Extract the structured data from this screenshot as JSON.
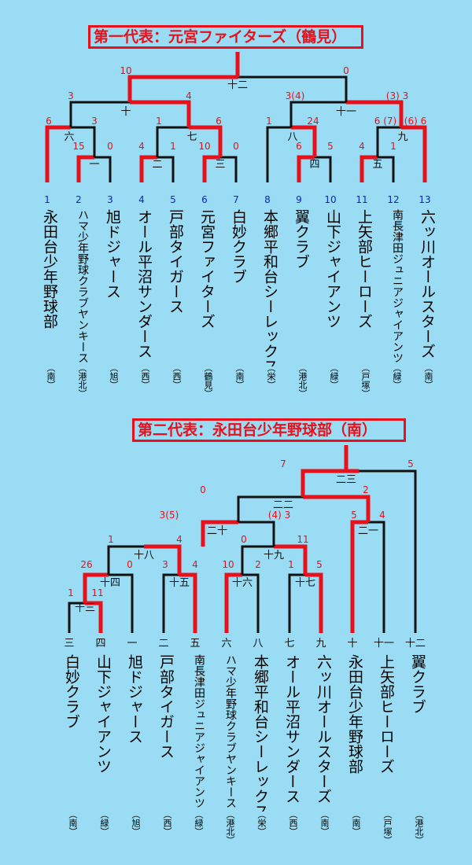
{
  "title1": "第一代表：元宮ファイターズ（鶴見）",
  "title2": "第二代表：永田台少年野球部（南）",
  "b1": {
    "teams": [
      {
        "num": "1",
        "name": "永田台少年野球部",
        "region": "（南）"
      },
      {
        "num": "2",
        "name": "ハマ少年野球クラブヤンキース",
        "region": "（港北）"
      },
      {
        "num": "3",
        "name": "旭ドジャース",
        "region": "（旭）"
      },
      {
        "num": "4",
        "name": "オール平沼サンダース",
        "region": "（西）"
      },
      {
        "num": "5",
        "name": "戸部タイガース",
        "region": "（西）"
      },
      {
        "num": "6",
        "name": "元宮ファイターズ",
        "region": "（鶴見）"
      },
      {
        "num": "7",
        "name": "白妙クラブ",
        "region": "（南）"
      },
      {
        "num": "8",
        "name": "本郷平和台シーレックス",
        "region": "（栄）"
      },
      {
        "num": "9",
        "name": "翼クラブ",
        "region": "（港北）"
      },
      {
        "num": "10",
        "name": "山下ジャイアンツ",
        "region": "（緑）"
      },
      {
        "num": "11",
        "name": "上矢部ヒーローズ",
        "region": "（戸塚）"
      },
      {
        "num": "12",
        "name": "南長津田ジュニアジャイアンツ",
        "region": "（緑）"
      },
      {
        "num": "13",
        "name": "六ッ川オールスターズ",
        "region": "（南）"
      }
    ],
    "scores": [
      "10",
      "0",
      "3",
      "4",
      "3(4)",
      "(3) 3",
      "6",
      "3",
      "1",
      "6",
      "1",
      "24",
      "6 (7)",
      "(6) 6",
      "15",
      "0",
      "4",
      "1",
      "10",
      "0",
      "6",
      "5",
      "4",
      "1"
    ],
    "games": [
      "十二",
      "十",
      "十一",
      "六",
      "七",
      "八",
      "九",
      "一",
      "二",
      "三",
      "四",
      "五"
    ]
  },
  "b2": {
    "teams": [
      {
        "num": "三",
        "name": "白妙クラブ",
        "region": "（南）"
      },
      {
        "num": "四",
        "name": "山下ジャイアンツ",
        "region": "（緑）"
      },
      {
        "num": "一",
        "name": "旭ドジャース",
        "region": "（旭）"
      },
      {
        "num": "二",
        "name": "戸部タイガース",
        "region": "（西）"
      },
      {
        "num": "五",
        "name": "南長津田ジュニアジャイアンツ",
        "region": "（緑）"
      },
      {
        "num": "六",
        "name": "ハマ少年野球クラブヤンキース",
        "region": "（港北）"
      },
      {
        "num": "八",
        "name": "本郷平和台シーレックス",
        "region": "（栄）"
      },
      {
        "num": "七",
        "name": "オール平沼サンダース",
        "region": "（西）"
      },
      {
        "num": "九",
        "name": "六ッ川オールスターズ",
        "region": "（南）"
      },
      {
        "num": "十",
        "name": "永田台少年野球部",
        "region": "（南）"
      },
      {
        "num": "十一",
        "name": "上矢部ヒーローズ",
        "region": "（戸塚）"
      },
      {
        "num": "十二",
        "name": "翼クラブ",
        "region": "（港北）"
      }
    ],
    "scores": [
      "7",
      "5",
      "0",
      "2",
      "3(5)",
      "(4) 3",
      "5",
      "4",
      "1",
      "4",
      "0",
      "11",
      "26",
      "0",
      "3",
      "4",
      "10",
      "2",
      "1",
      "5",
      "1",
      "11"
    ],
    "games": [
      "二三",
      "二二",
      "二十",
      "二一",
      "十八",
      "十九",
      "十四",
      "十五",
      "十六",
      "十七",
      "十三"
    ]
  }
}
